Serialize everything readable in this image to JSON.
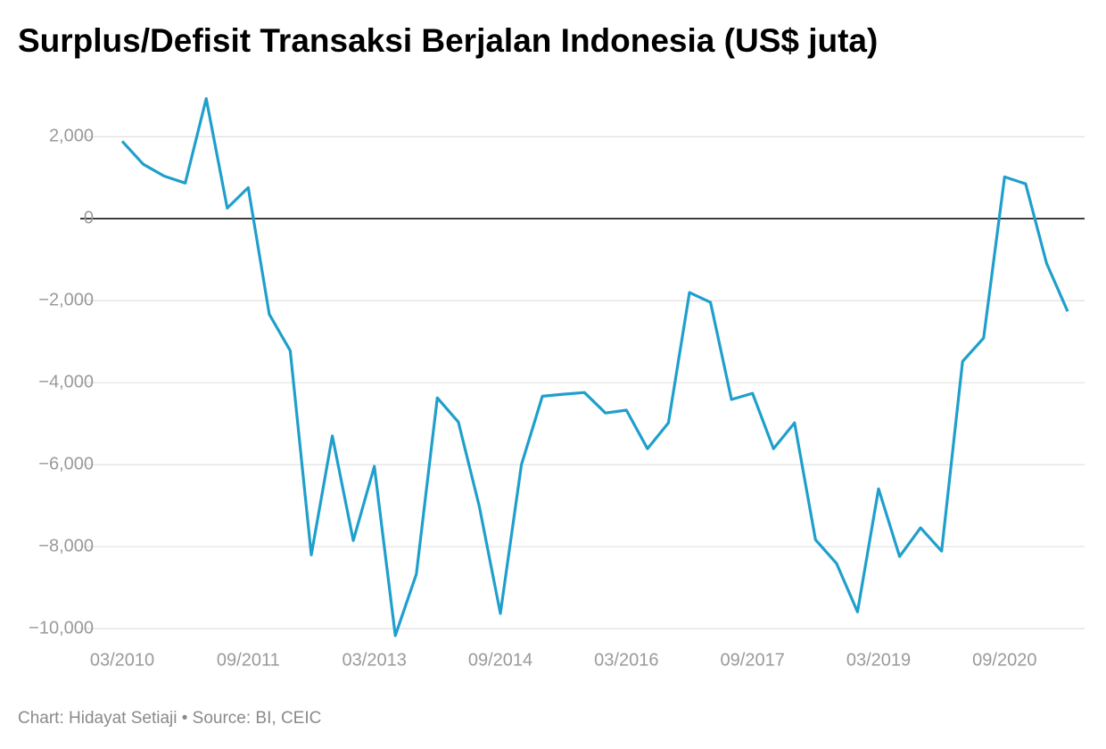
{
  "chart_data": {
    "type": "line",
    "title": "Surplus/Defisit Transaksi Berjalan Indonesia (US$ juta)",
    "credit": "Chart: Hidayat Setiaji • Source: BI, CEIC",
    "categories": [
      "03/2010",
      null,
      null,
      null,
      null,
      null,
      "09/2011",
      null,
      null,
      null,
      null,
      null,
      "03/2013",
      null,
      null,
      null,
      null,
      null,
      "09/2014",
      null,
      null,
      null,
      null,
      null,
      "03/2016",
      null,
      null,
      null,
      null,
      null,
      "09/2017",
      null,
      null,
      null,
      null,
      null,
      "03/2019",
      null,
      null,
      null,
      null,
      null,
      "09/2020",
      null,
      null,
      null
    ],
    "series": [
      {
        "name": "Transaksi Berjalan",
        "color": "#1f9fcc",
        "values": [
          1890,
          1330,
          1040,
          870,
          2930,
          260,
          760,
          -2330,
          -3220,
          -8200,
          -5300,
          -7850,
          -6040,
          -10170,
          -8670,
          -4370,
          -4960,
          -7020,
          -9630,
          -6000,
          -4330,
          -4280,
          -4240,
          -4740,
          -4670,
          -5610,
          -4980,
          -1800,
          -2040,
          -4410,
          -4260,
          -5610,
          -4980,
          -7830,
          -8410,
          -9590,
          -6590,
          -8240,
          -7540,
          -8110,
          -3480,
          -2910,
          1020,
          850,
          -1090,
          -2260
        ]
      }
    ],
    "ylim": [
      -10300,
      3200
    ],
    "yticks": [
      {
        "value": 2000,
        "label": "2,000"
      },
      0,
      {
        "value": -2000,
        "label": "−2,000"
      },
      {
        "value": -4000,
        "label": "−4,000"
      },
      {
        "value": -6000,
        "label": "−6,000"
      },
      {
        "value": -8000,
        "label": "−8,000"
      },
      {
        "value": -10000,
        "label": "−10,000"
      }
    ],
    "grid": true
  }
}
